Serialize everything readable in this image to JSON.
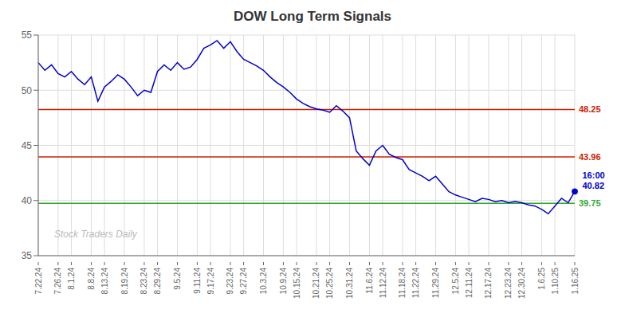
{
  "chart_data": {
    "type": "line",
    "title": "DOW Long Term Signals",
    "categories": [
      "7.22.24",
      null,
      null,
      "7.26.24",
      null,
      "8.1.24",
      null,
      null,
      "8.8.24",
      null,
      "8.13.24",
      null,
      null,
      "8.19.24",
      null,
      null,
      "8.23.24",
      null,
      "8.29.24",
      null,
      null,
      "9.5.24",
      null,
      null,
      "9.11.24",
      null,
      "9.17.24",
      null,
      null,
      "9.23.24",
      null,
      "9.27.24",
      null,
      null,
      "10.3.24",
      null,
      null,
      "10.9.24",
      null,
      "10.15.24",
      null,
      null,
      "10.21.24",
      null,
      "10.25.24",
      null,
      null,
      "10.31.24",
      null,
      null,
      "11.6.24",
      null,
      "11.12.24",
      null,
      null,
      "11.18.24",
      null,
      "11.22.24",
      null,
      null,
      "11.29.24",
      null,
      null,
      "12.5.24",
      null,
      "12.11.24",
      null,
      null,
      "12.17.24",
      null,
      null,
      "12.23.24",
      null,
      "12.30.24",
      null,
      null,
      "1.6.25",
      null,
      "1.10.25",
      null,
      null,
      "1.16.25"
    ],
    "values": [
      52.5,
      51.8,
      52.3,
      51.5,
      51.2,
      51.7,
      51.0,
      50.5,
      51.2,
      49.0,
      50.3,
      50.8,
      51.4,
      51.0,
      50.3,
      49.5,
      50.0,
      49.8,
      51.7,
      52.3,
      51.8,
      52.5,
      51.9,
      52.1,
      52.8,
      53.8,
      54.1,
      54.5,
      53.8,
      54.4,
      53.5,
      52.8,
      52.5,
      52.2,
      51.8,
      51.2,
      50.7,
      50.3,
      49.8,
      49.2,
      48.8,
      48.5,
      48.3,
      48.2,
      48.0,
      48.6,
      48.1,
      47.5,
      44.5,
      43.8,
      43.2,
      44.5,
      45.0,
      44.2,
      43.9,
      43.7,
      42.8,
      42.5,
      42.2,
      41.8,
      42.2,
      41.5,
      40.8,
      40.5,
      40.3,
      40.1,
      39.9,
      40.2,
      40.1,
      39.9,
      40.0,
      39.8,
      39.9,
      39.8,
      39.6,
      39.5,
      39.2,
      38.8,
      39.5,
      40.2,
      39.8,
      40.82
    ],
    "color": "#0000cc",
    "ylim": [
      35,
      55
    ],
    "yticks": [
      35,
      40,
      45,
      50,
      55
    ],
    "grid": true,
    "hlines": [
      {
        "value": 48.25,
        "label": "48.25",
        "color": "#cc2200"
      },
      {
        "value": 43.96,
        "label": "43.96",
        "color": "#cc2200"
      },
      {
        "value": 39.75,
        "label": "39.75",
        "color": "#33aa33"
      }
    ],
    "annotations": [
      "16:00",
      "40.82"
    ],
    "watermark": "Stock Traders Daily"
  }
}
